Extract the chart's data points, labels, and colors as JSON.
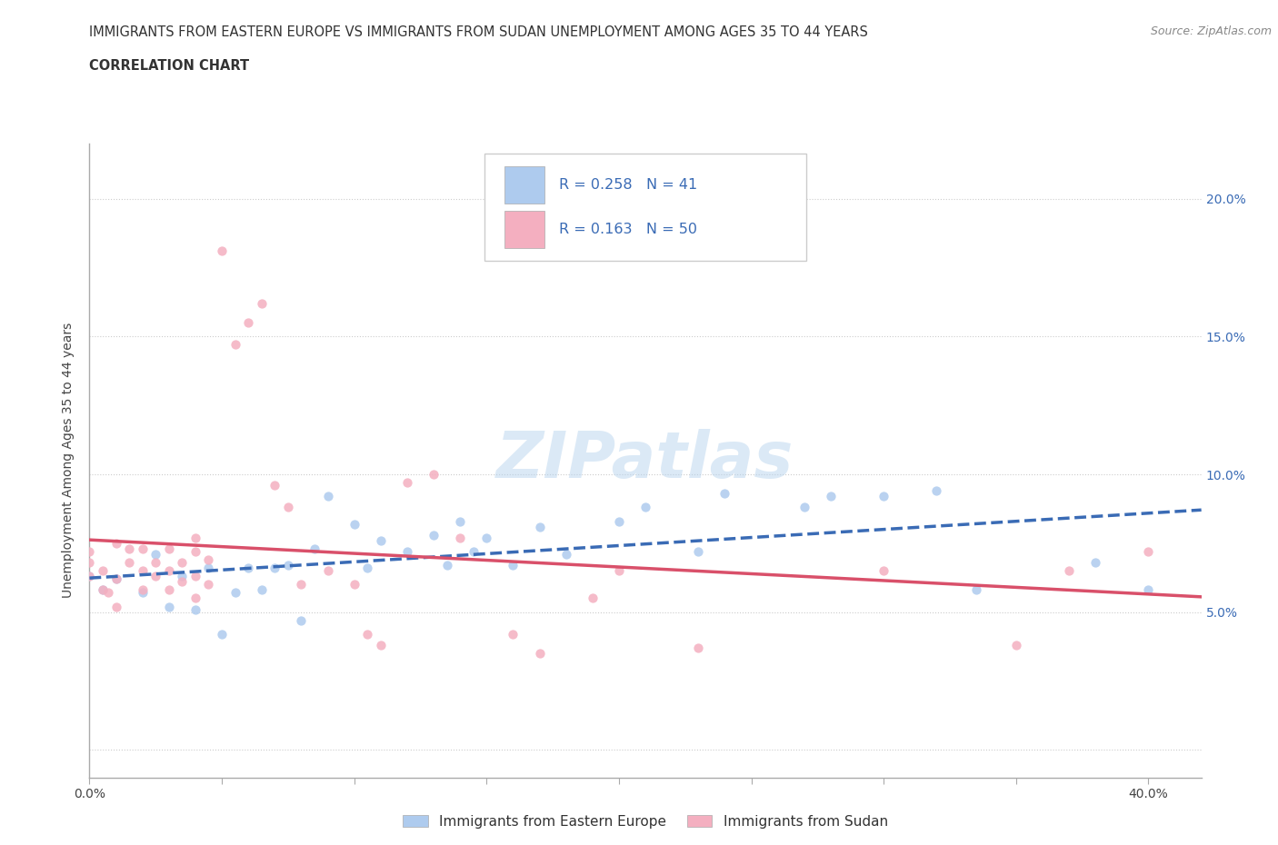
{
  "title_line1": "IMMIGRANTS FROM EASTERN EUROPE VS IMMIGRANTS FROM SUDAN UNEMPLOYMENT AMONG AGES 35 TO 44 YEARS",
  "title_line2": "CORRELATION CHART",
  "source_text": "Source: ZipAtlas.com",
  "ylabel": "Unemployment Among Ages 35 to 44 years",
  "xlim": [
    0.0,
    0.42
  ],
  "ylim": [
    -0.01,
    0.22
  ],
  "xtick_positions": [
    0.0,
    0.05,
    0.1,
    0.15,
    0.2,
    0.25,
    0.3,
    0.35,
    0.4
  ],
  "xticklabels": [
    "0.0%",
    "",
    "",
    "",
    "",
    "",
    "",
    "",
    "40.0%"
  ],
  "ytick_positions": [
    0.0,
    0.05,
    0.1,
    0.15,
    0.2
  ],
  "yticklabels_right": [
    "",
    "5.0%",
    "10.0%",
    "15.0%",
    "20.0%"
  ],
  "watermark": "ZIPatlas",
  "blue_scatter_color": "#aecbee",
  "pink_scatter_color": "#f4afc0",
  "blue_line_color": "#3a6bb5",
  "pink_line_color": "#d9506a",
  "grid_color": "#cccccc",
  "R_blue": 0.258,
  "N_blue": 41,
  "R_pink": 0.163,
  "N_pink": 50,
  "legend_label_blue": "Immigrants from Eastern Europe",
  "legend_label_pink": "Immigrants from Sudan",
  "blue_scatter_x": [
    0.0,
    0.005,
    0.01,
    0.02,
    0.025,
    0.03,
    0.035,
    0.04,
    0.045,
    0.05,
    0.055,
    0.06,
    0.065,
    0.07,
    0.075,
    0.08,
    0.085,
    0.09,
    0.1,
    0.105,
    0.11,
    0.12,
    0.13,
    0.135,
    0.14,
    0.145,
    0.15,
    0.16,
    0.17,
    0.18,
    0.2,
    0.21,
    0.23,
    0.24,
    0.27,
    0.28,
    0.3,
    0.32,
    0.335,
    0.38,
    0.4
  ],
  "blue_scatter_y": [
    0.063,
    0.058,
    0.062,
    0.057,
    0.071,
    0.052,
    0.063,
    0.051,
    0.066,
    0.042,
    0.057,
    0.066,
    0.058,
    0.066,
    0.067,
    0.047,
    0.073,
    0.092,
    0.082,
    0.066,
    0.076,
    0.072,
    0.078,
    0.067,
    0.083,
    0.072,
    0.077,
    0.067,
    0.081,
    0.071,
    0.083,
    0.088,
    0.072,
    0.093,
    0.088,
    0.092,
    0.092,
    0.094,
    0.058,
    0.068,
    0.058
  ],
  "pink_scatter_x": [
    0.0,
    0.0,
    0.0,
    0.005,
    0.005,
    0.007,
    0.01,
    0.01,
    0.01,
    0.015,
    0.015,
    0.02,
    0.02,
    0.02,
    0.025,
    0.025,
    0.03,
    0.03,
    0.03,
    0.035,
    0.035,
    0.04,
    0.04,
    0.04,
    0.04,
    0.045,
    0.045,
    0.05,
    0.055,
    0.06,
    0.065,
    0.07,
    0.075,
    0.08,
    0.09,
    0.1,
    0.105,
    0.11,
    0.12,
    0.13,
    0.14,
    0.16,
    0.17,
    0.19,
    0.2,
    0.23,
    0.3,
    0.35,
    0.37,
    0.4
  ],
  "pink_scatter_y": [
    0.063,
    0.068,
    0.072,
    0.058,
    0.065,
    0.057,
    0.052,
    0.062,
    0.075,
    0.068,
    0.073,
    0.058,
    0.065,
    0.073,
    0.063,
    0.068,
    0.058,
    0.065,
    0.073,
    0.061,
    0.068,
    0.055,
    0.063,
    0.072,
    0.077,
    0.06,
    0.069,
    0.181,
    0.147,
    0.155,
    0.162,
    0.096,
    0.088,
    0.06,
    0.065,
    0.06,
    0.042,
    0.038,
    0.097,
    0.1,
    0.077,
    0.042,
    0.035,
    0.055,
    0.065,
    0.037,
    0.065,
    0.038,
    0.065,
    0.072
  ],
  "background_color": "#ffffff"
}
